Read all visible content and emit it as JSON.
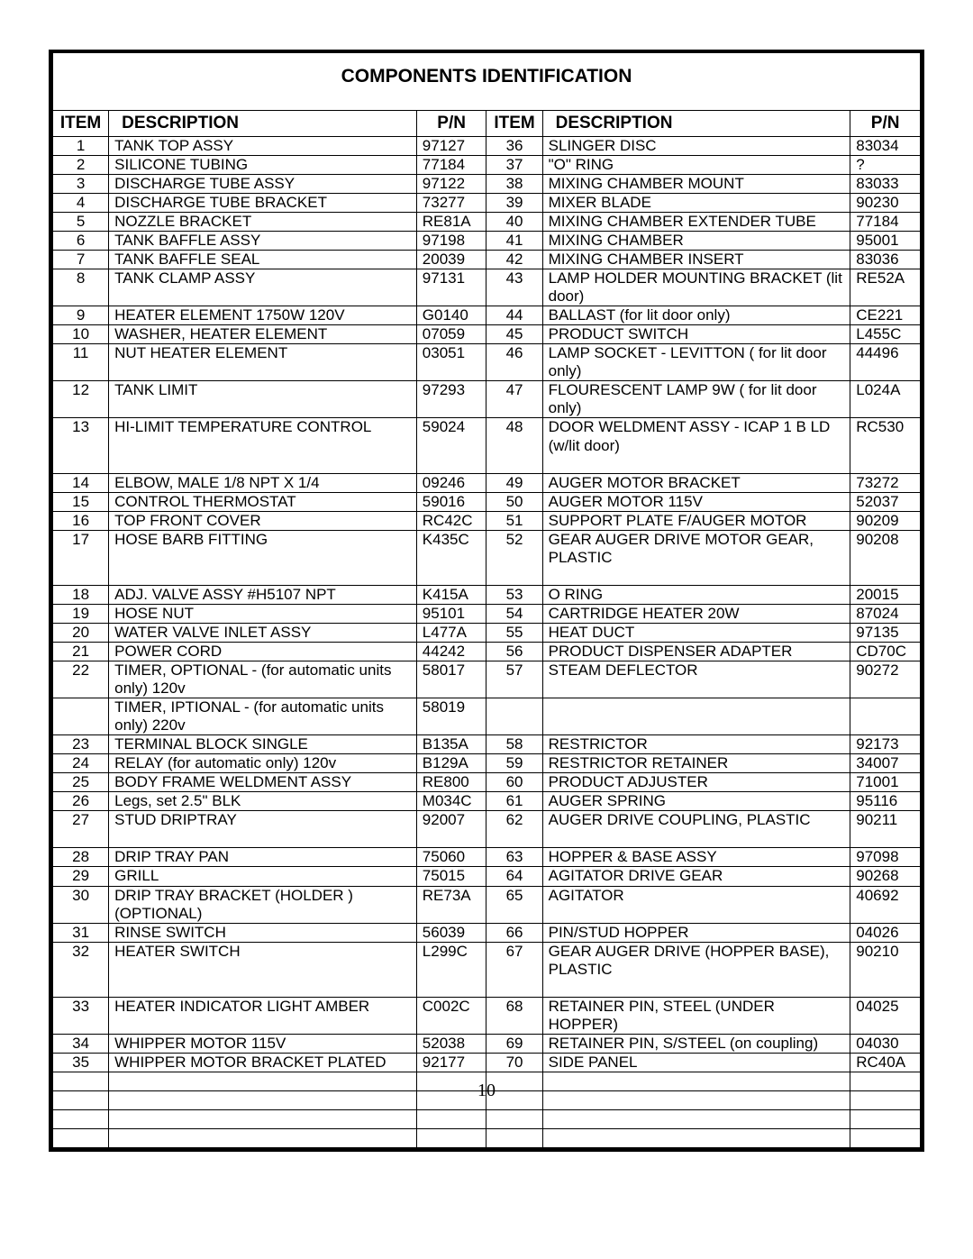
{
  "title": "COMPONENTS IDENTIFICATION",
  "headers": {
    "item": "ITEM",
    "desc": "DESCRIPTION",
    "pn": "P/N"
  },
  "page_number": "10",
  "num_empty_rows": 4,
  "rows": [
    {
      "li": "1",
      "ld": "TANK TOP ASSY",
      "lp": "97127",
      "ri": "36",
      "rd": "SLINGER DISC",
      "rp": "83034"
    },
    {
      "li": "2",
      "ld": "SILICONE TUBING",
      "lp": "77184",
      "ri": "37",
      "rd": "\"O\" RING",
      "rp": "?"
    },
    {
      "li": "3",
      "ld": "DISCHARGE TUBE ASSY",
      "lp": "97122",
      "ri": "38",
      "rd": "MIXING CHAMBER MOUNT",
      "rp": "83033"
    },
    {
      "li": "4",
      "ld": "DISCHARGE TUBE BRACKET",
      "lp": "73277",
      "ri": "39",
      "rd": "MIXER BLADE",
      "rp": "90230"
    },
    {
      "li": "5",
      "ld": "NOZZLE BRACKET",
      "lp": "RE81A",
      "ri": "40",
      "rd": "MIXING CHAMBER EXTENDER TUBE",
      "rp": "77184"
    },
    {
      "li": "6",
      "ld": "TANK BAFFLE ASSY",
      "lp": "97198",
      "ri": "41",
      "rd": "MIXING CHAMBER",
      "rp": "95001"
    },
    {
      "li": "7",
      "ld": "TANK BAFFLE SEAL",
      "lp": "20039",
      "ri": "42",
      "rd": "MIXING CHAMBER INSERT",
      "rp": "83036"
    },
    {
      "li": "8",
      "ld": "TANK CLAMP ASSY",
      "lp": "97131",
      "ri": "43",
      "rd": "LAMP HOLDER MOUNTING BRACKET (lit door)",
      "rp": "RE52A"
    },
    {
      "li": "9",
      "ld": "HEATER ELEMENT 1750W  120V",
      "lp": "G0140",
      "ri": "44",
      "rd": "BALLAST (for lit door only)",
      "rp": "CE221"
    },
    {
      "li": "10",
      "ld": "WASHER, HEATER ELEMENT",
      "lp": "07059",
      "ri": "45",
      "rd": "PRODUCT SWITCH",
      "rp": "L455C"
    },
    {
      "li": "11",
      "ld": "NUT HEATER ELEMENT",
      "lp": "03051",
      "ri": "46",
      "rd": "LAMP SOCKET - LEVITTON  ( for lit door only)",
      "rp": "44496"
    },
    {
      "li": "12",
      "ld": "TANK LIMIT",
      "lp": "97293",
      "ri": "47",
      "rd": "FLOURESCENT LAMP 9W  ( for lit door only)",
      "rp": "L024A"
    },
    {
      "li": "13",
      "ld": "HI-LIMIT TEMPERATURE CONTROL",
      "lp": "59024",
      "ri": "48",
      "rd": "DOOR WELDMENT ASSY - ICAP 1 B LD (w/lit door)",
      "rp": "RC530",
      "tall": true
    },
    {
      "li": "14",
      "ld": "ELBOW, MALE 1/8 NPT X 1/4",
      "lp": "09246",
      "ri": "49",
      "rd": "AUGER MOTOR BRACKET",
      "rp": "73272"
    },
    {
      "li": "15",
      "ld": "CONTROL THERMOSTAT",
      "lp": "59016",
      "ri": "50",
      "rd": "AUGER MOTOR 115V",
      "rp": "52037"
    },
    {
      "li": "16",
      "ld": "TOP FRONT COVER",
      "lp": "RC42C",
      "ri": "51",
      "rd": "SUPPORT PLATE F/AUGER MOTOR",
      "rp": "90209"
    },
    {
      "li": "17",
      "ld": "HOSE BARB FITTING",
      "lp": "K435C",
      "ri": "52",
      "rd": "GEAR AUGER DRIVE MOTOR GEAR, PLASTIC",
      "rp": "90208",
      "tall": true
    },
    {
      "li": "18",
      "ld": "ADJ. VALVE ASSY #H5107 NPT",
      "lp": "K415A",
      "ri": "53",
      "rd": "O RING",
      "rp": "20015"
    },
    {
      "li": "19",
      "ld": "HOSE NUT",
      "lp": "95101",
      "ri": "54",
      "rd": "CARTRIDGE HEATER 20W",
      "rp": "87024"
    },
    {
      "li": "20",
      "ld": "WATER VALVE INLET ASSY",
      "lp": "L477A",
      "ri": "55",
      "rd": "HEAT DUCT",
      "rp": "97135"
    },
    {
      "li": "21",
      "ld": "POWER CORD",
      "lp": "44242",
      "ri": "56",
      "rd": "PRODUCT DISPENSER ADAPTER",
      "rp": "CD70C"
    },
    {
      "li": "22",
      "ld": "TIMER, OPTIONAL - (for automatic units only)  120v",
      "lp": "58017",
      "ri": "57",
      "rd": "STEAM DEFLECTOR",
      "rp": "90272",
      "ld2": "TIMER, IPTIONAL - (for automatic units only) 220v",
      "lp2": "58019"
    },
    {
      "li": "23",
      "ld": "TERMINAL BLOCK SINGLE",
      "lp": "B135A",
      "ri": "58",
      "rd": "RESTRICTOR",
      "rp": "92173"
    },
    {
      "li": "24",
      "ld": "RELAY (for automatic only) 120v",
      "lp": "B129A",
      "ri": "59",
      "rd": "RESTRICTOR RETAINER",
      "rp": "34007"
    },
    {
      "li": "25",
      "ld": "BODY FRAME WELDMENT ASSY",
      "lp": "RE800",
      "ri": "60",
      "rd": "PRODUCT ADJUSTER",
      "rp": "71001"
    },
    {
      "li": "26",
      "ld": "Legs, set 2.5\" BLK",
      "lp": "M034C",
      "ri": "61",
      "rd": "AUGER SPRING",
      "rp": "95116"
    },
    {
      "li": "27",
      "ld": "STUD DRIPTRAY",
      "lp": "92007",
      "ri": "62",
      "rd": "AUGER DRIVE COUPLING, PLASTIC",
      "rp": "90211",
      "tall": true
    },
    {
      "li": "28",
      "ld": "DRIP TRAY PAN",
      "lp": "75060",
      "ri": "63",
      "rd": "HOPPER & BASE ASSY",
      "rp": "97098"
    },
    {
      "li": "29",
      "ld": "GRILL",
      "lp": "75015",
      "ri": "64",
      "rd": "AGITATOR DRIVE GEAR",
      "rp": "90268"
    },
    {
      "li": "30",
      "ld": "DRIP TRAY BRACKET (HOLDER )(OPTIONAL)",
      "lp": "RE73A",
      "ri": "65",
      "rd": "AGITATOR",
      "rp": "40692"
    },
    {
      "li": "31",
      "ld": "RINSE SWITCH",
      "lp": "56039",
      "ri": "66",
      "rd": "PIN/STUD HOPPER",
      "rp": "04026"
    },
    {
      "li": "32",
      "ld": "HEATER SWITCH",
      "lp": "L299C",
      "ri": "67",
      "rd": "GEAR AUGER DRIVE (HOPPER BASE), PLASTIC",
      "rp": "90210",
      "tall": true
    },
    {
      "li": "33",
      "ld": "HEATER INDICATOR LIGHT AMBER",
      "lp": "C002C",
      "ri": "68",
      "rd": "RETAINER PIN, STEEL (UNDER HOPPER)",
      "rp": "04025"
    },
    {
      "li": "34",
      "ld": "WHIPPER MOTOR 115V",
      "lp": "52038",
      "ri": "69",
      "rd": "RETAINER PIN, S/STEEL (on coupling)",
      "rp": "04030"
    },
    {
      "li": "35",
      "ld": "WHIPPER MOTOR BRACKET PLATED",
      "lp": "92177",
      "ri": "70",
      "rd": "SIDE PANEL",
      "rp": "RC40A"
    }
  ]
}
